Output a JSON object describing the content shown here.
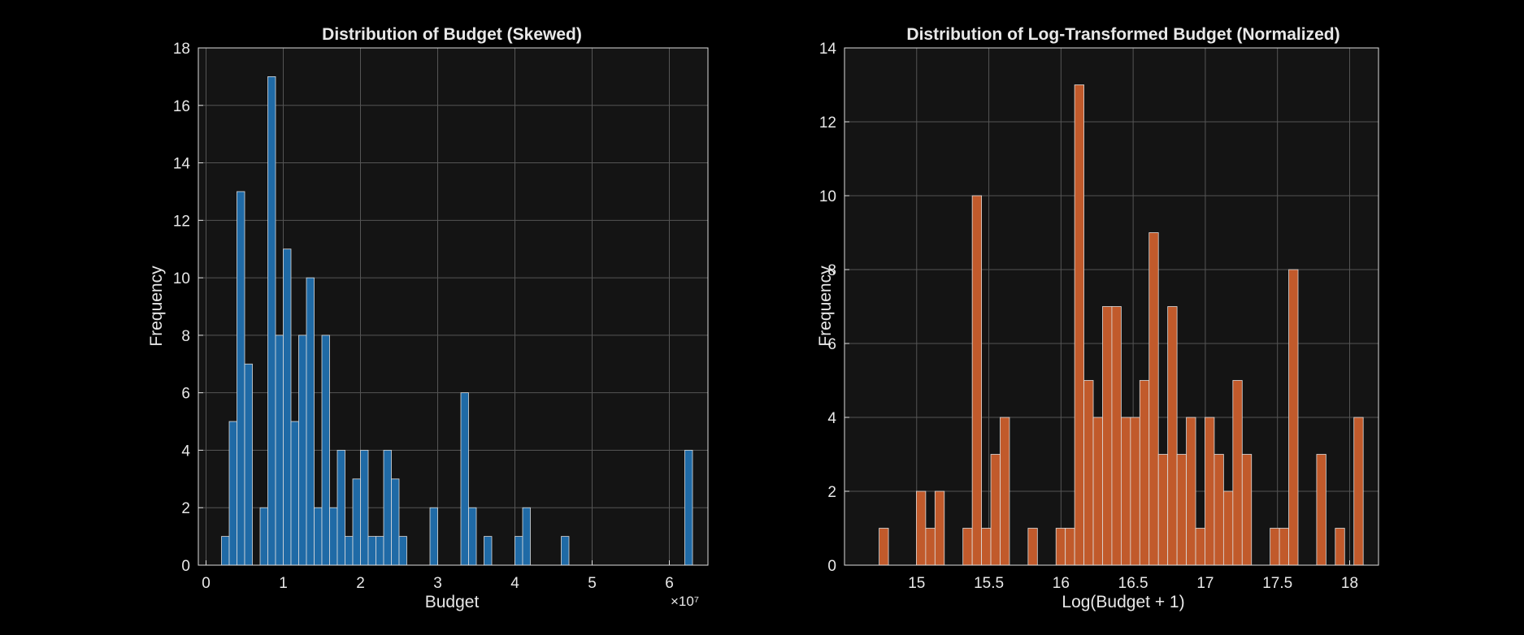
{
  "colors": {
    "background": "#000000",
    "axes_bg": "#141414",
    "grid": "#555555",
    "text": "#e8e8e8",
    "left_bar": "#1f6aa6",
    "right_bar": "#c15a2b",
    "bar_edge": "#dddddd"
  },
  "chart_data": [
    {
      "type": "bar",
      "title": "Distribution of Budget (Skewed)",
      "xlabel": "Budget",
      "ylabel": "Frequency",
      "x_exponent_label": "×10⁷",
      "xlim": [
        -0.1,
        6.5
      ],
      "ylim": [
        0,
        18
      ],
      "xticks": [
        0,
        1,
        2,
        3,
        4,
        5,
        6
      ],
      "xtick_labels": [
        "0",
        "1",
        "2",
        "3",
        "4",
        "5",
        "6"
      ],
      "yticks": [
        0,
        2,
        4,
        6,
        8,
        10,
        12,
        14,
        16,
        18
      ],
      "ytick_labels": [
        "0",
        "2",
        "4",
        "6",
        "8",
        "10",
        "12",
        "14",
        "16",
        "18"
      ],
      "grid": true,
      "bin_start": 0.2,
      "bin_width": 0.1,
      "values": [
        1,
        5,
        13,
        7,
        0,
        2,
        17,
        8,
        11,
        5,
        8,
        10,
        2,
        8,
        2,
        4,
        1,
        3,
        4,
        1,
        1,
        4,
        3,
        1,
        0,
        0,
        0,
        2,
        0,
        0,
        0,
        6,
        2,
        0,
        1,
        0,
        0,
        0,
        1,
        2,
        0,
        0,
        0,
        0,
        1,
        0,
        0,
        0,
        0,
        0,
        0,
        0,
        0,
        0,
        0,
        0,
        0,
        0,
        0,
        0,
        4
      ]
    },
    {
      "type": "bar",
      "title": "Distribution of Log-Transformed Budget (Normalized)",
      "xlabel": "Log(Budget + 1)",
      "ylabel": "Frequency",
      "xlim": [
        14.5,
        18.2
      ],
      "ylim": [
        0,
        14
      ],
      "xticks": [
        15,
        15.5,
        16,
        16.5,
        17,
        17.5,
        18
      ],
      "xtick_labels": [
        "15",
        "15.5",
        "16",
        "16.5",
        "17",
        "17.5",
        "18"
      ],
      "yticks": [
        0,
        2,
        4,
        6,
        8,
        10,
        12,
        14
      ],
      "ytick_labels": [
        "0",
        "2",
        "4",
        "6",
        "8",
        "10",
        "12",
        "14"
      ],
      "grid": true,
      "bin_start": 14.74,
      "bin_width": 0.0645,
      "values": [
        1,
        0,
        0,
        0,
        2,
        1,
        2,
        0,
        0,
        1,
        10,
        1,
        3,
        4,
        0,
        0,
        1,
        0,
        0,
        1,
        1,
        13,
        5,
        4,
        7,
        7,
        4,
        4,
        5,
        9,
        3,
        7,
        3,
        4,
        1,
        4,
        3,
        2,
        5,
        3,
        0,
        0,
        1,
        1,
        8,
        0,
        0,
        3,
        0,
        1,
        0,
        4
      ]
    }
  ]
}
